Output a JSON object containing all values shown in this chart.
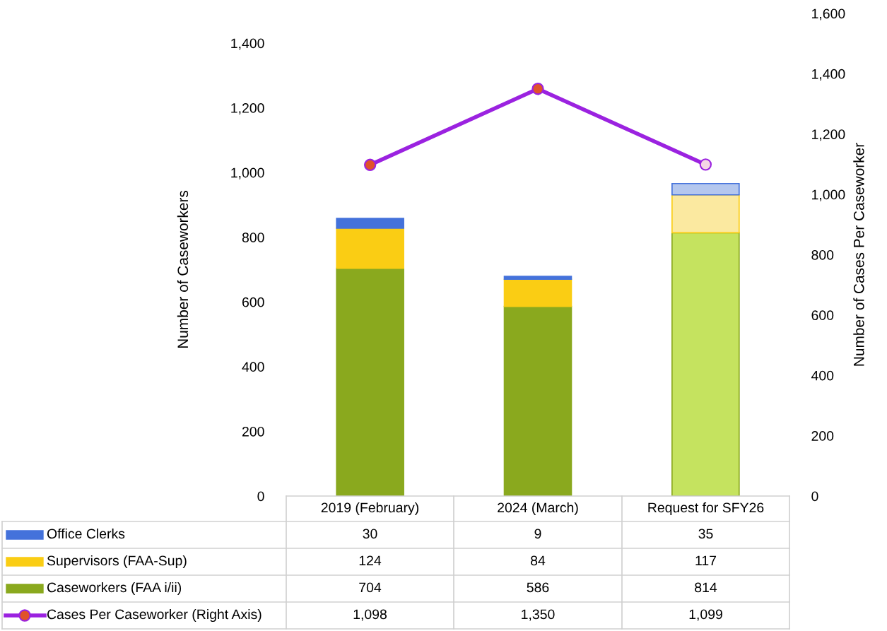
{
  "chart_data": {
    "type": "bar",
    "stacked": true,
    "categories": [
      "2019 (February)",
      "2024 (March)",
      "Request for SFY26"
    ],
    "ylabel": "Number of Caseworkers",
    "y2label": "Number of Cases Per Caseworker",
    "ylim": [
      0,
      1400
    ],
    "yticks": [
      {
        "value": 0,
        "label": "0"
      },
      {
        "value": 200,
        "label": "200"
      },
      {
        "value": 400,
        "label": "400"
      },
      {
        "value": 600,
        "label": "600"
      },
      {
        "value": 800,
        "label": "800"
      },
      {
        "value": 1000,
        "label": "1,000"
      },
      {
        "value": 1200,
        "label": "1,200"
      },
      {
        "value": 1400,
        "label": "1,400"
      }
    ],
    "y2lim": [
      0,
      1600
    ],
    "y2ticks": [
      {
        "value": 0,
        "label": "0"
      },
      {
        "value": 200,
        "label": "200"
      },
      {
        "value": 400,
        "label": "400"
      },
      {
        "value": 600,
        "label": "600"
      },
      {
        "value": 800,
        "label": "800"
      },
      {
        "value": 1000,
        "label": "1,000"
      },
      {
        "value": 1200,
        "label": "1,200"
      },
      {
        "value": 1400,
        "label": "1,400"
      },
      {
        "value": 1600,
        "label": "1,600"
      }
    ],
    "series": [
      {
        "name": "Caseworkers (FAA i/ii)",
        "color": "#8aa91e",
        "colors": [
          "#8aa91e",
          "#8aa91e",
          "#c5e35f"
        ],
        "values": [
          704,
          586,
          814
        ],
        "value_labels": [
          "704",
          "586",
          "814"
        ]
      },
      {
        "name": "Supervisors (FAA-Sup)",
        "color": "#facd14",
        "colors": [
          "#facd14",
          "#facd14",
          "#fbe9a0"
        ],
        "values": [
          124,
          84,
          117
        ],
        "value_labels": [
          "124",
          "84",
          "117"
        ]
      },
      {
        "name": "Office Clerks",
        "color": "#4472db",
        "colors": [
          "#4472db",
          "#4472db",
          "#b4c7ee"
        ],
        "values": [
          30,
          9,
          35
        ],
        "value_labels": [
          "30",
          "9",
          "35"
        ]
      },
      {
        "name": "Cases Per Caseworker (Right Axis)",
        "type": "line",
        "axis": "y2",
        "color": "#9b22e0",
        "colors": [
          "#e0522a",
          "#e0522a",
          "#f5d5e5"
        ],
        "marker": "circle",
        "values": [
          1098,
          1350,
          1099
        ],
        "value_labels": [
          "1,098",
          "1,350",
          "1,099"
        ]
      }
    ],
    "legend": "bottom",
    "grid": false
  }
}
